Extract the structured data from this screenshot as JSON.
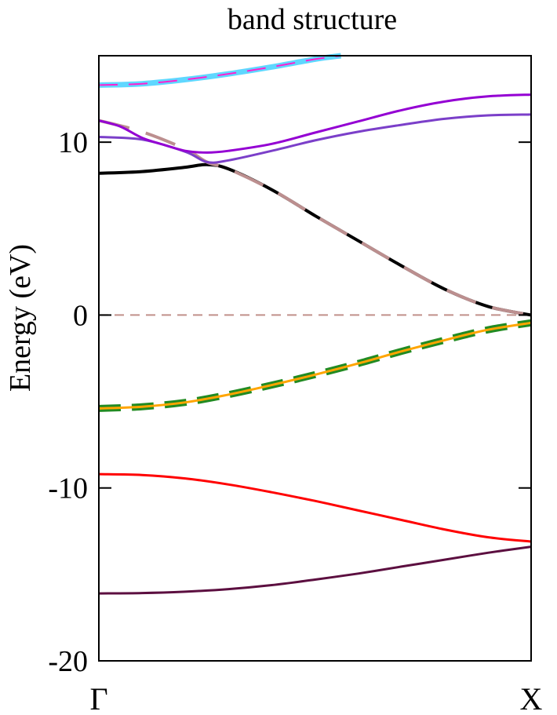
{
  "chart_data": {
    "type": "line",
    "title": "band structure",
    "ylabel": "Energy (eV)",
    "xlabel": "",
    "ylim": [
      -20,
      15
    ],
    "xlim": [
      0,
      1
    ],
    "yticks": [
      {
        "value": 10,
        "label": "10"
      },
      {
        "value": 0,
        "label": "0"
      },
      {
        "value": -10,
        "label": "-10"
      },
      {
        "value": -20,
        "label": "-20"
      }
    ],
    "kpoints": [
      {
        "x": 0,
        "label": "Γ"
      },
      {
        "x": 1,
        "label": "X"
      }
    ],
    "fermi_level": {
      "y": 0,
      "color": "#c0908a",
      "style": "dashed"
    },
    "grid": false,
    "series": [
      {
        "color": "#5c0f40",
        "width": 3,
        "dash": "",
        "x": [
          0,
          0.1,
          0.2,
          0.3,
          0.4,
          0.5,
          0.6,
          0.7,
          0.8,
          0.9,
          1.0
        ],
        "y": [
          -16.1,
          -16.08,
          -16.0,
          -15.85,
          -15.62,
          -15.3,
          -14.95,
          -14.55,
          -14.15,
          -13.75,
          -13.4
        ]
      },
      {
        "color": "#ff0000",
        "width": 3,
        "dash": "",
        "x": [
          0,
          0.1,
          0.2,
          0.3,
          0.4,
          0.5,
          0.6,
          0.7,
          0.8,
          0.9,
          1.0
        ],
        "y": [
          -9.2,
          -9.25,
          -9.45,
          -9.8,
          -10.25,
          -10.75,
          -11.3,
          -11.85,
          -12.4,
          -12.85,
          -13.1
        ]
      },
      {
        "color": "#228b22",
        "width": 9,
        "dash": "28,14",
        "x": [
          0,
          0.1,
          0.2,
          0.3,
          0.4,
          0.5,
          0.6,
          0.7,
          0.8,
          0.9,
          1.0
        ],
        "y": [
          -5.4,
          -5.3,
          -5.05,
          -4.6,
          -4.05,
          -3.45,
          -2.8,
          -2.1,
          -1.45,
          -0.85,
          -0.45
        ]
      },
      {
        "color": "#ffa500",
        "width": 3,
        "dash": "",
        "x": [
          0,
          0.1,
          0.2,
          0.3,
          0.4,
          0.5,
          0.6,
          0.7,
          0.8,
          0.9,
          1.0
        ],
        "y": [
          -5.4,
          -5.3,
          -5.05,
          -4.6,
          -4.05,
          -3.45,
          -2.8,
          -2.1,
          -1.45,
          -0.85,
          -0.45
        ]
      },
      {
        "color": "#000000",
        "width": 4,
        "dash": "",
        "x": [
          0,
          0.1,
          0.2,
          0.25,
          0.3,
          0.4,
          0.5,
          0.6,
          0.7,
          0.8,
          0.9,
          1.0
        ],
        "y": [
          8.2,
          8.3,
          8.55,
          8.7,
          8.45,
          7.25,
          5.75,
          4.3,
          2.85,
          1.5,
          0.5,
          0.0
        ]
      },
      {
        "color": "#bc8f8f",
        "width": 4,
        "dash": "40,22",
        "x": [
          0,
          0.1,
          0.2,
          0.25,
          0.3,
          0.4,
          0.5,
          0.6,
          0.7,
          0.8,
          0.9,
          1.0
        ],
        "y": [
          11.25,
          10.6,
          9.6,
          8.85,
          8.45,
          7.25,
          5.75,
          4.3,
          2.85,
          1.5,
          0.5,
          0.0
        ]
      },
      {
        "color": "#7b3fc9",
        "width": 3,
        "dash": "",
        "x": [
          0,
          0.1,
          0.2,
          0.25,
          0.3,
          0.4,
          0.5,
          0.6,
          0.7,
          0.8,
          0.9,
          1.0
        ],
        "y": [
          10.3,
          10.15,
          9.45,
          8.85,
          8.95,
          9.5,
          10.1,
          10.6,
          11.0,
          11.35,
          11.55,
          11.6
        ]
      },
      {
        "color": "#9400d3",
        "width": 3,
        "dash": "",
        "x": [
          0,
          0.05,
          0.1,
          0.15,
          0.2,
          0.25,
          0.3,
          0.4,
          0.5,
          0.6,
          0.7,
          0.8,
          0.9,
          1.0
        ],
        "y": [
          11.25,
          10.9,
          10.25,
          9.85,
          9.5,
          9.4,
          9.5,
          9.9,
          10.55,
          11.2,
          11.85,
          12.35,
          12.65,
          12.75
        ]
      },
      {
        "color": "#5fd7ff",
        "width": 7,
        "dash": "",
        "x": [
          0,
          0.1,
          0.2,
          0.3,
          0.4,
          0.5,
          0.56
        ],
        "y": [
          13.3,
          13.38,
          13.62,
          13.95,
          14.35,
          14.8,
          15.0
        ]
      },
      {
        "color": "#ff1fcf",
        "width": 2,
        "dash": "24,14",
        "x": [
          0,
          0.1,
          0.2,
          0.3,
          0.4,
          0.5,
          0.56
        ],
        "y": [
          13.3,
          13.38,
          13.62,
          13.95,
          14.35,
          14.8,
          15.0
        ]
      }
    ]
  }
}
